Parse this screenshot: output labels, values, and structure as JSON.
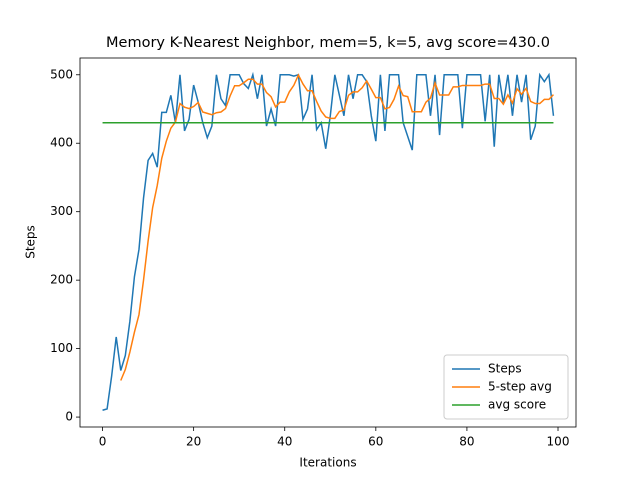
{
  "chart_data": {
    "type": "line",
    "title": "Memory K-Nearest Neighbor, mem=5, k=5, avg score=430.0",
    "x_label": "Iterations",
    "y_label": "Steps",
    "x": [
      0,
      1,
      2,
      3,
      4,
      5,
      6,
      7,
      8,
      9,
      10,
      11,
      12,
      13,
      14,
      15,
      16,
      17,
      18,
      19,
      20,
      21,
      22,
      23,
      24,
      25,
      26,
      27,
      28,
      29,
      30,
      31,
      32,
      33,
      34,
      35,
      36,
      37,
      38,
      39,
      40,
      41,
      42,
      43,
      44,
      45,
      46,
      47,
      48,
      49,
      50,
      51,
      52,
      53,
      54,
      55,
      56,
      57,
      58,
      59,
      60,
      61,
      62,
      63,
      64,
      65,
      66,
      67,
      68,
      69,
      70,
      71,
      72,
      73,
      74,
      75,
      76,
      77,
      78,
      79,
      80,
      81,
      82,
      83,
      84,
      85,
      86,
      87,
      88,
      89,
      90,
      91,
      92,
      93,
      94,
      95,
      96,
      97,
      98,
      99
    ],
    "series": [
      {
        "name": "Steps",
        "color": "#1f77b4",
        "values": [
          10,
          12,
          60,
          117,
          68,
          90,
          140,
          205,
          245,
          320,
          375,
          385,
          365,
          445,
          445,
          470,
          430,
          500,
          418,
          435,
          485,
          460,
          430,
          408,
          425,
          500,
          465,
          455,
          500,
          500,
          500,
          487,
          480,
          500,
          465,
          500,
          425,
          450,
          425,
          500,
          500,
          500,
          498,
          500,
          435,
          450,
          500,
          420,
          430,
          392,
          440,
          500,
          470,
          440,
          500,
          465,
          500,
          500,
          490,
          440,
          403,
          500,
          418,
          500,
          500,
          500,
          430,
          410,
          390,
          500,
          500,
          500,
          440,
          500,
          412,
          500,
          500,
          500,
          500,
          422,
          500,
          500,
          500,
          500,
          432,
          500,
          395,
          500,
          458,
          500,
          440,
          500,
          460,
          500,
          405,
          425,
          500,
          490,
          500,
          440
        ]
      },
      {
        "name": "5-step avg",
        "color": "#ff7f0e",
        "values": [
          null,
          null,
          null,
          null,
          53.4,
          69.4,
          95,
          124,
          149.6,
          200,
          257,
          306,
          338,
          378,
          403,
          422,
          431,
          458,
          452.6,
          450.6,
          453.6,
          459.6,
          445.6,
          443.6,
          441.6,
          444.6,
          445.6,
          450.6,
          469,
          484,
          484,
          488.4,
          493.4,
          493.4,
          486.4,
          486.4,
          474,
          468,
          453,
          460,
          460,
          475,
          484.6,
          499.6,
          486.6,
          476.6,
          476.6,
          461,
          447,
          438.4,
          436.4,
          436.4,
          446.4,
          448.4,
          470,
          475,
          475,
          481,
          491,
          479,
          466.6,
          466.6,
          450.2,
          452.2,
          464.2,
          483.6,
          469.6,
          468,
          446,
          446,
          446,
          460,
          466,
          488,
          470.4,
          470.4,
          470.4,
          482.4,
          482.4,
          484.4,
          484.4,
          484.4,
          484.4,
          484.4,
          486.4,
          486.4,
          465.4,
          465.4,
          457,
          470.6,
          458.6,
          479.6,
          471.6,
          480,
          461,
          458,
          458,
          464,
          464,
          471
        ]
      },
      {
        "name": "avg score",
        "color": "#2ca02c",
        "x": [
          0,
          99
        ],
        "values": [
          430,
          430
        ]
      }
    ],
    "xlim": [
      -4.95,
      103.95
    ],
    "ylim": [
      -14.5,
      524.5
    ],
    "xticks": [
      0,
      20,
      40,
      60,
      80,
      100
    ],
    "yticks": [
      0,
      100,
      200,
      300,
      400,
      500
    ],
    "legend": "lower right"
  }
}
